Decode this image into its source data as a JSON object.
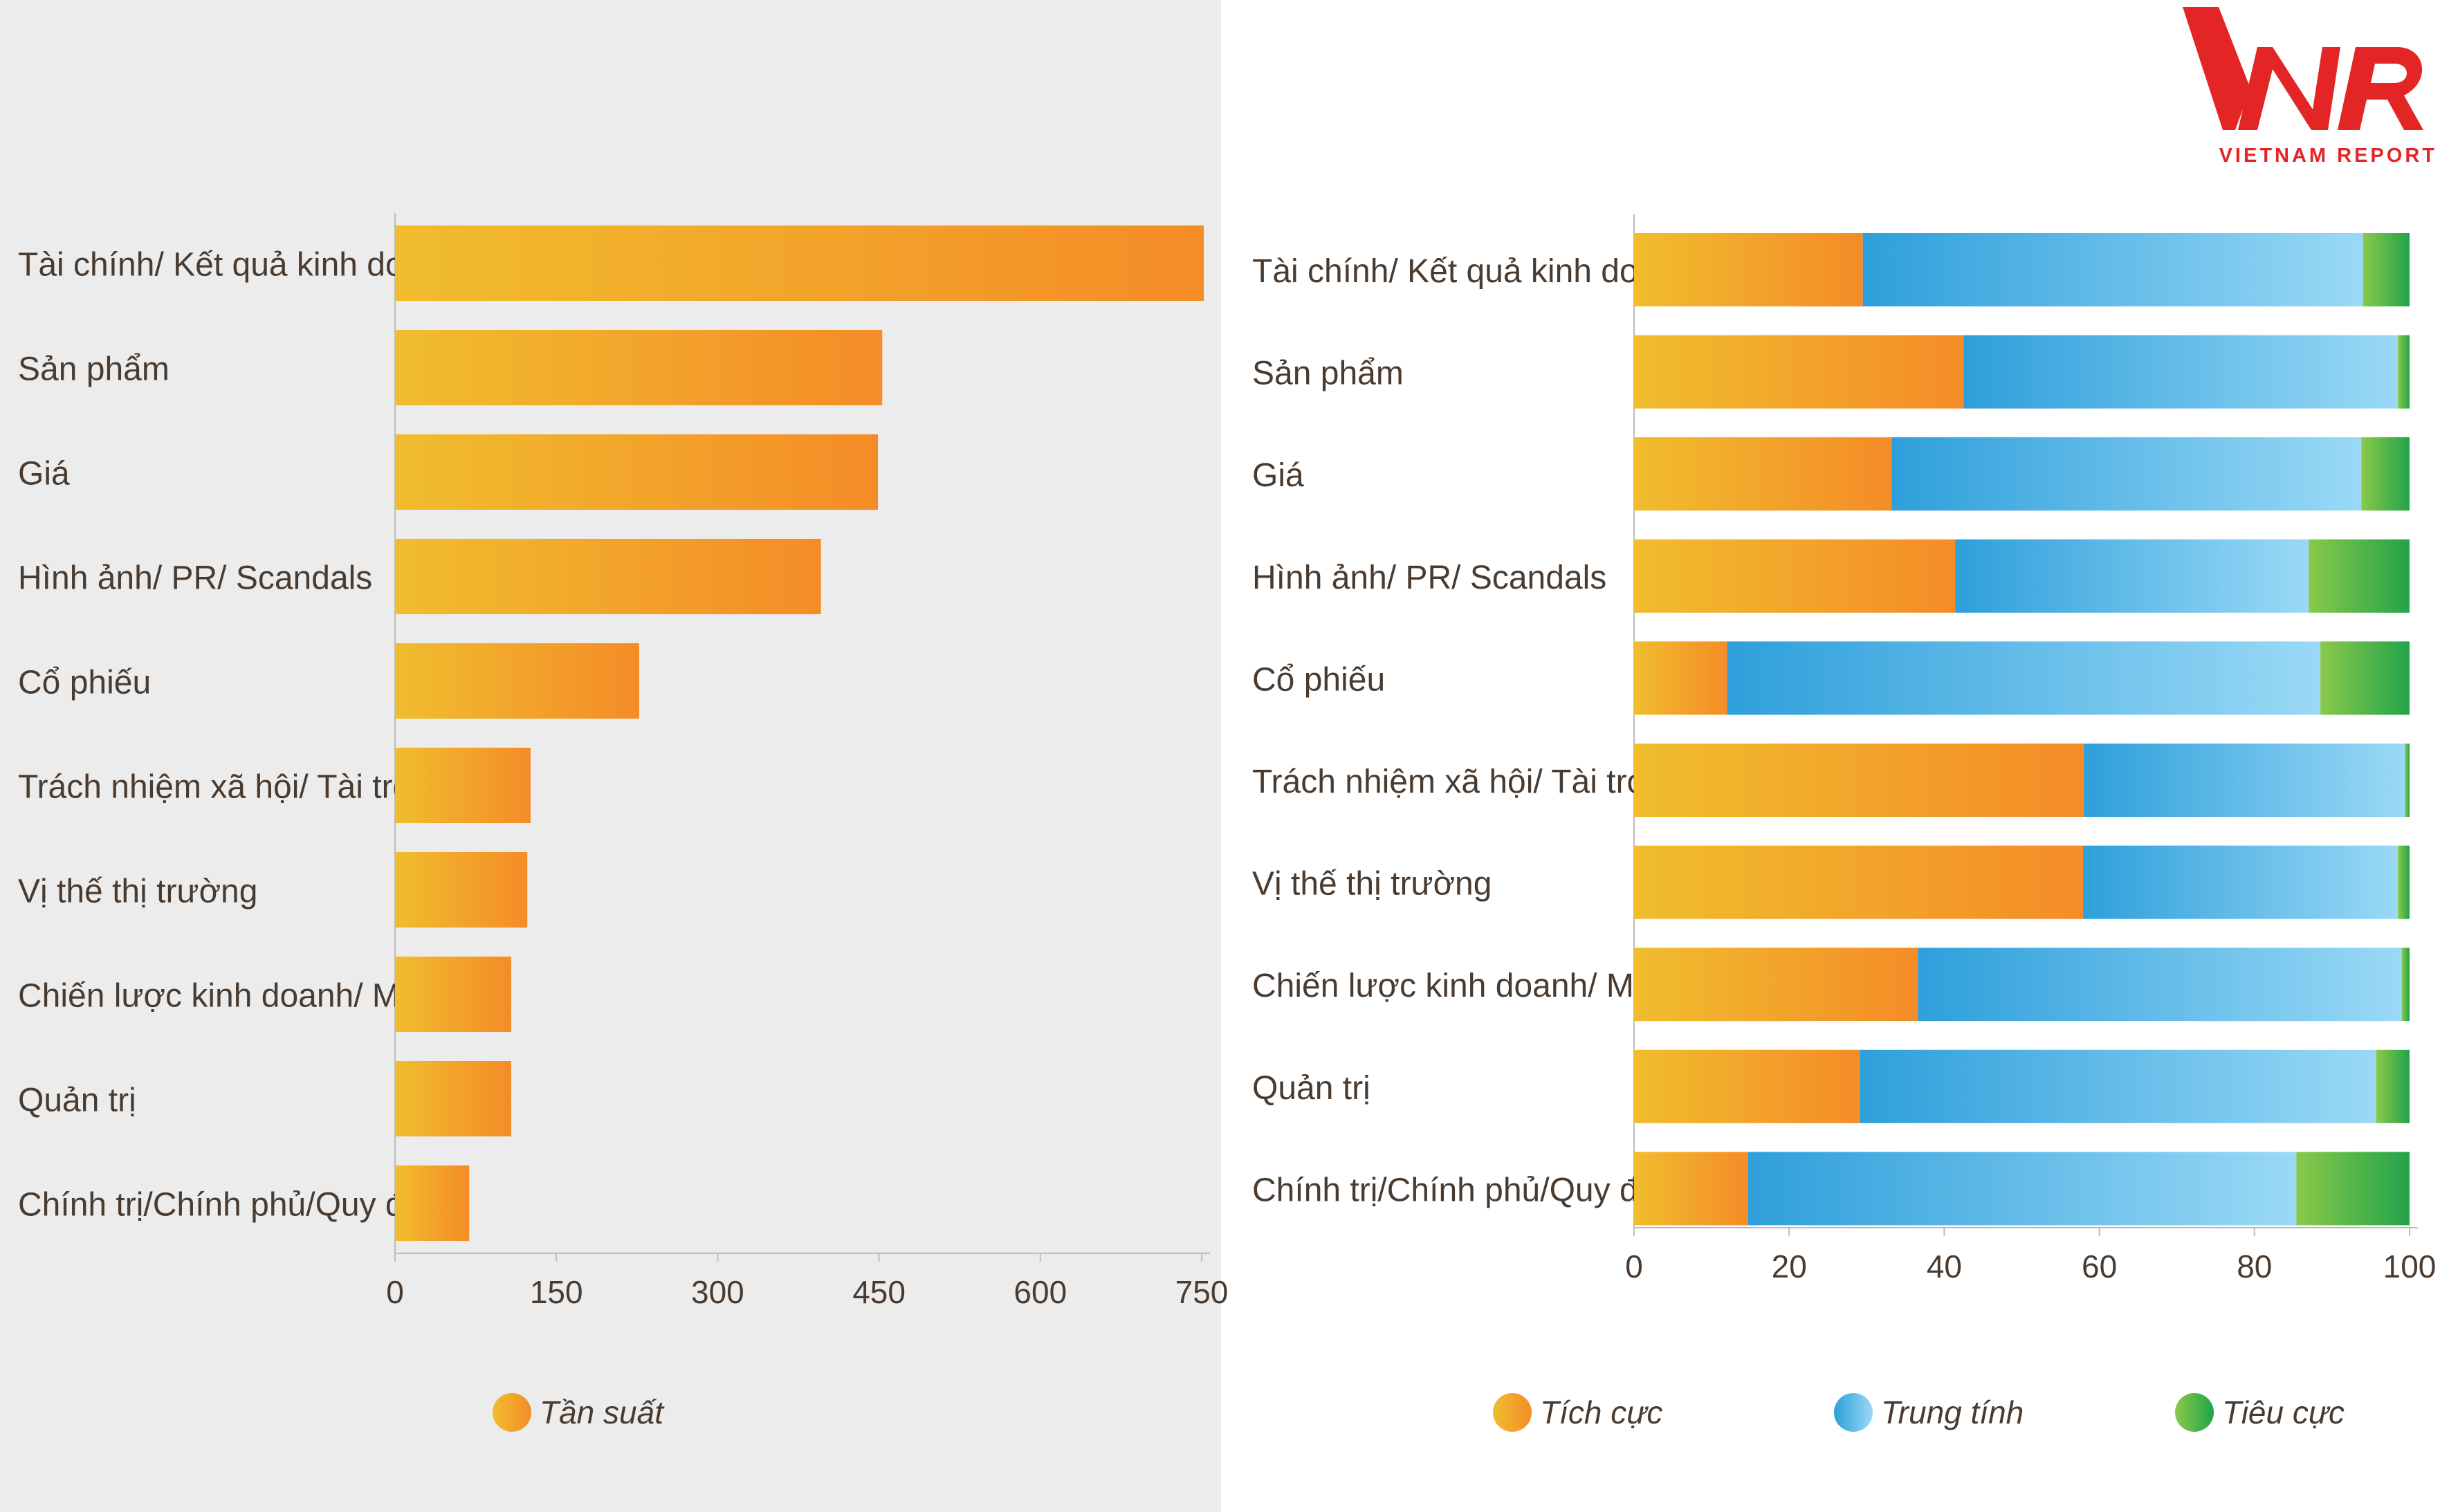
{
  "logo": {
    "mark": "VNR",
    "wordmark": "VIETNAM REPORT",
    "color": "#e42526"
  },
  "colors": {
    "orange_start": "#f0bd2e",
    "orange_end": "#f58c27",
    "blue_start": "#2e9fdb",
    "blue_end": "#9ad9f6",
    "green_start": "#8ac94a",
    "green_end": "#22a34a",
    "axis": "#bdbdbd",
    "text": "#4a3b30"
  },
  "chart_data": [
    {
      "type": "bar",
      "orientation": "horizontal",
      "categories": [
        "Tài chính/ Kết quả kinh doanh",
        "Sản phẩm",
        "Giá",
        "Hình ảnh/ PR/ Scandals",
        "Cổ phiếu",
        "Trách nhiệm xã hội/ Tài trợ",
        "Vị thế thị trường",
        "Chiến lược kinh doanh/ M&A",
        "Quản trị",
        "Chính trị/Chính phủ/Quy định"
      ],
      "series": [
        {
          "name": "Tần suất",
          "values": [
            752,
            453,
            449,
            396,
            227,
            126,
            123,
            108,
            108,
            69
          ]
        }
      ],
      "xlim": [
        0,
        750
      ],
      "xticks": [
        "0",
        "150",
        "300",
        "450",
        "600",
        "750"
      ],
      "legend": [
        "Tần suất"
      ],
      "legend_position": "bottom",
      "grid": false
    },
    {
      "type": "bar",
      "orientation": "horizontal",
      "stacked": true,
      "categories": [
        "Tài chính/ Kết quả kinh doanh",
        "Sản phẩm",
        "Giá",
        "Hình ảnh/ PR/ Scandals",
        "Cổ phiếu",
        "Trách nhiệm xã hội/ Tài trợ",
        "Vị thế thị trường",
        "Chiến lược kinh doanh/ M&A",
        "Quản trị",
        "Chính trị/Chính phủ/Quy định"
      ],
      "series": [
        {
          "name": "Tích cực",
          "values": [
            29.5,
            42.5,
            33.2,
            41.4,
            12.0,
            58.0,
            57.9,
            36.6,
            29.1,
            14.7
          ]
        },
        {
          "name": "Trung tính",
          "values": [
            64.5,
            56.0,
            60.6,
            45.6,
            76.5,
            41.4,
            40.6,
            62.4,
            66.6,
            70.7
          ]
        },
        {
          "name": "Tiêu cực",
          "values": [
            6.0,
            1.5,
            6.2,
            13.0,
            11.5,
            0.6,
            1.5,
            1.0,
            4.3,
            14.6
          ]
        }
      ],
      "xlim": [
        0,
        100
      ],
      "xticks": [
        "0",
        "20",
        "40",
        "60",
        "80",
        "100"
      ],
      "legend": [
        "Tích cực",
        "Trung tính",
        "Tiêu cực"
      ],
      "legend_position": "bottom",
      "grid": false
    }
  ]
}
